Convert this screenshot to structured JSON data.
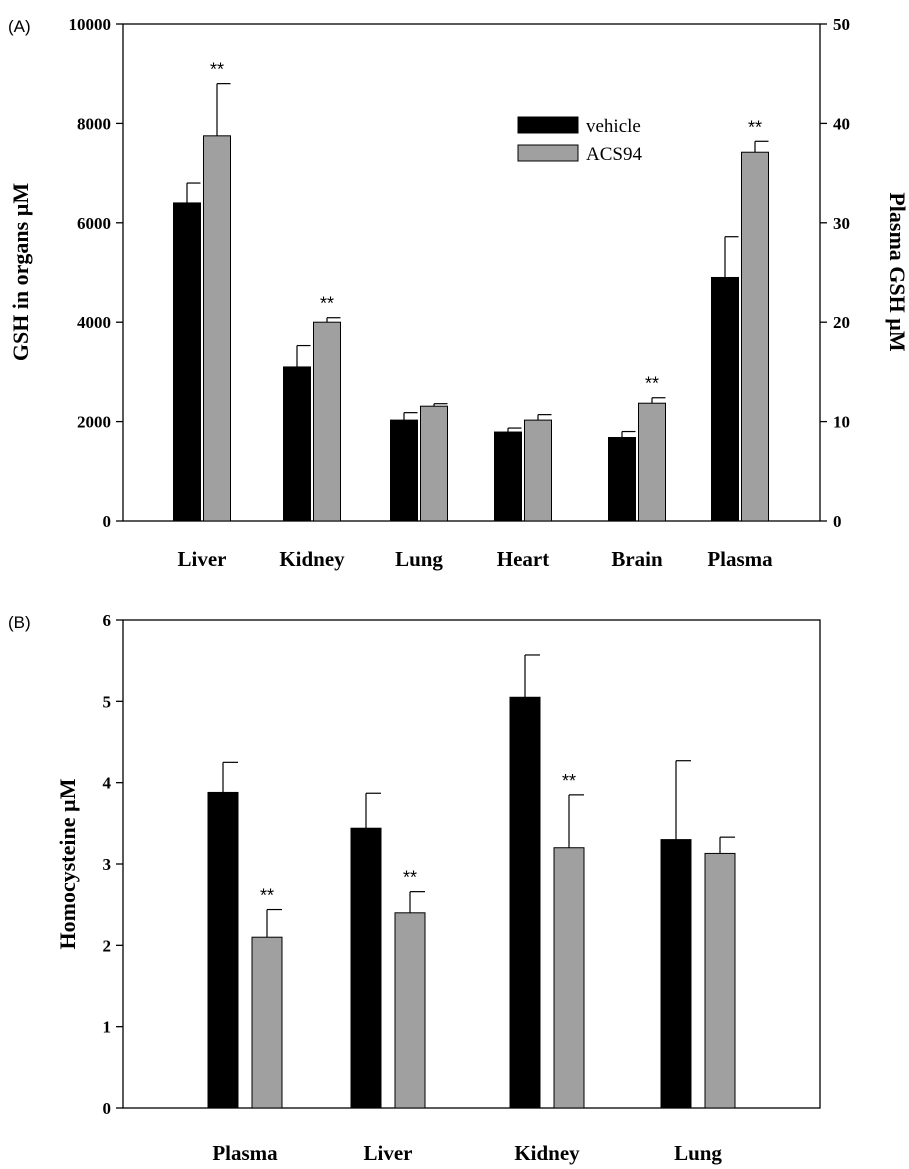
{
  "chart_data": [
    {
      "panel_label": "(A)",
      "type": "bar",
      "categories": [
        "Liver",
        "Kidney",
        "Lung",
        "Heart",
        "Brain",
        "Plasma"
      ],
      "series": [
        {
          "name": "vehicle",
          "color": "#000000",
          "values": [
            6400,
            3100,
            2030,
            1790,
            1680,
            24.5
          ],
          "errors": [
            400,
            430,
            150,
            80,
            120,
            4.1
          ]
        },
        {
          "name": "ACS94",
          "color": "#a0a0a0",
          "values": [
            7750,
            4000,
            2310,
            2030,
            2370,
            37.1
          ],
          "errors": [
            1050,
            90,
            50,
            110,
            110,
            1.1
          ]
        }
      ],
      "significance": [
        [
          "",
          "**"
        ],
        [
          "",
          "**"
        ],
        [
          "",
          ""
        ],
        [
          "",
          ""
        ],
        [
          "",
          "**"
        ],
        [
          "",
          "**"
        ]
      ],
      "significance_mark": "**",
      "ylabel": "GSH in organs µM",
      "ylim": [
        0,
        10000
      ],
      "yticks": [
        "0",
        "2000",
        "4000",
        "6000",
        "8000",
        "10000"
      ],
      "ylabel_right": "Plasma GSH µM",
      "ylim_right": [
        0,
        50
      ],
      "yticks_right": [
        "0",
        "10",
        "20",
        "30",
        "40",
        "50"
      ],
      "right_axis_categories": [
        "Plasma"
      ],
      "legend_position": "top-right"
    },
    {
      "panel_label": "(B)",
      "type": "bar",
      "categories": [
        "Plasma",
        "Liver",
        "Kidney",
        "Lung"
      ],
      "series": [
        {
          "name": "vehicle",
          "color": "#000000",
          "values": [
            3.88,
            3.44,
            5.05,
            3.3
          ],
          "errors": [
            0.37,
            0.43,
            0.52,
            0.97
          ]
        },
        {
          "name": "ACS94",
          "color": "#a0a0a0",
          "values": [
            2.1,
            2.4,
            3.2,
            3.13
          ],
          "errors": [
            0.34,
            0.26,
            0.65,
            0.2
          ]
        }
      ],
      "significance": [
        [
          "",
          "**"
        ],
        [
          "",
          "**"
        ],
        [
          "",
          "**"
        ],
        [
          "",
          ""
        ]
      ],
      "significance_mark": "**",
      "ylabel": "Homocysteine µM",
      "ylim": [
        0,
        6
      ],
      "yticks": [
        "0",
        "1",
        "2",
        "3",
        "4",
        "5",
        "6"
      ]
    }
  ]
}
